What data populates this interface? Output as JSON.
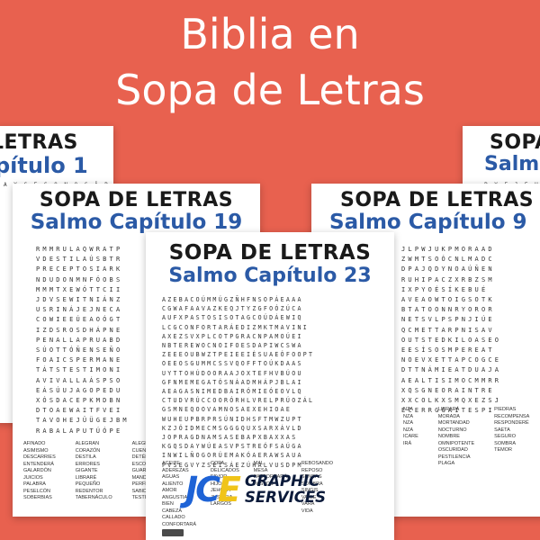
{
  "title": {
    "line1": "Biblia en",
    "line2": "Sopa de Letras"
  },
  "sheets": {
    "back_left": {
      "heading": "LETRAS",
      "subheading": "pítulo 1",
      "strip": "A Y C E G O N O C Â R"
    },
    "back_right": {
      "heading": "SOPA",
      "subheading": "Salm",
      "strip": "P Y E J E H O"
    },
    "mid_left": {
      "heading": "SOPA DE LETRAS",
      "subheading": "Salmo Capítulo 19",
      "grid": "RMMRULAQWRATP\nVDESTILAÚSBTR\nPRECEPTOSIARK\nNDUDONMNFÓOBS\nMMMTXEWÓTTCII\nJDVSEWITNIÁNZ\nUSRINÁJEJNECA\nCOWIEEÚEAOÓGT\nIZDSROSDHÁPNE\nPENALLAPRUABD\nSÚOTTÓÑENSEÑO\nFOAICSPERMANE\nTÁTSTESTIMONI\nAVIVALLAÁSPSO\nEÁSÚUJAGOPEDU\nXÓSDACEPKMDBN\nDTOAEWAITFVEI\nTAVOHEJÜÜGEJBM\nRABALAPUTÚÓPE",
      "words_col1": [
        "AFINADO",
        "ASIMISMO",
        "DESCARRIES",
        "ENTENDERÁ",
        "GALARDÓN",
        "JUICIOS",
        "PALABRA",
        "PESELCÓN",
        "SOBERBIAS"
      ],
      "words_col2": [
        "ALEGRAN",
        "CORAZÓN",
        "DESTILA",
        "ERRORES",
        "GIGANTE",
        "LIBRARÉ",
        "PEQUEÑO",
        "REDENTOR",
        "TABERNÁCULO"
      ],
      "words_col3": [
        "ALEGRASE",
        "CUENTAN",
        "DETÉN",
        "ESCONDA",
        "GUARDARLOS",
        "MANDAMIENTO",
        "PERFECTA",
        "SABIDURÍA",
        "TESTIMONIO"
      ]
    },
    "mid_right": {
      "heading": "SOPA DE LETRAS",
      "subheading": "Salmo Capítulo 9",
      "grid": "JLPWJUKPMORAAD\nZWMTSOÓCNLMADC\nDPAJQDYNOAÚÑEN\nRUHIPACZXRBZSM\nIXPYOÉSÍKEBUÉ\nAVEAOWTOIGSOTK\nBTATOONNRYOROR\nNETSVLPSPNJIÚE\nQCMETTARPNISAV\nOUTSTEDKILOASEO\nEESÍSOSMPEREAT\nNOEVXETTAPCOGCE\nDTTNÁMIEATDUAJA\nAEALTISIMOCMMRR\nXQSGNEORAINTRE\nXXCOLKXSMQXEZSJ\nECERRGGAITESPI",
      "words_col1": [
        "NZA",
        "NZA",
        "NZA",
        "NZA",
        "ICARE",
        "",
        "IRÁ"
      ],
      "words_col2": [
        "LIBRARÁ",
        "MORADA",
        "MORTANDAD",
        "NOCTURNO",
        "NOMBRE",
        "OMNIPOTENTE",
        "OSCURIDAD",
        "PESTILENCIA",
        "PLAGA"
      ],
      "words_col3": [
        "PIEDRAS",
        "RECOMPENSA",
        "RESPONDERÉ",
        "SAETA",
        "SEGURO",
        "SOMBRA",
        "TEMOR"
      ]
    },
    "front": {
      "heading": "SOPA DE LETRAS",
      "subheading": "Salmo Capítulo 23",
      "grid": "AZEBACOÚMMÚGZÑHFNSOPÁEAAA\nCGWAFAAVAZKEQJTYZGFOÓZÚCA\nAUFXPASTOSISOTAGCOÚDÁEWIQ\nLCGCONFORTARÁEDIZMKTMAVINI\nAXEZSVXPLCOTPGRACNPAMOÚEI\nNBTEREWOCNOIFOESDAPIWCSWA\nZEEEOUBWZTPEIEEIÉSUAEÓFOOPT\nOEEOSGUMMCSSVQOFFTOÚKDAAS\nUYTTOHÚDOORAAJOXTEFHVBÚOU\nGFNMEMEGATÓSNÁADMHÁPJBLAI\nAEAGASNIMEDBAIRÓMIEÓEOVLQ\nCTUDVRÚCCOORÓRHLVRELPRÚOZÁL\nGSMNEQOOVAMNOSAEXEHIOAE\nWUHEUPBRPRSÚNIDHSFTMWZUPT\nKZJÓIDMECMSGGGQUXSARXÁVLD\nJOPRAGDNAMSASEBAPXBAXXAS\nKGQSDAYWÚEASVPSTREÓFSAÚGA\nINWILÑOGORÚEMAKÓAERAWSAUA\nPVSEGVYZSEISÁEZÚHALVUSDPM",
      "words_col1": [
        "ACEITE",
        "ADEREZAS",
        "AGUAS",
        "ALIENTO",
        "AMOR",
        "ANGUSTIAS",
        "BIEN",
        "CABEZA",
        "CALLADO",
        "CONFORTARÁ"
      ],
      "words_col2": [
        "COPA",
        "DELICADOS",
        "FAVOR",
        "HIJOS",
        "JEHOVÁ",
        "JUSTICIA",
        "LARGOS"
      ],
      "words_col3": [
        "MAL",
        "MESA",
        "",
        "",
        "",
        "",
        "",
        "PASTOREARÁ",
        "PASTOS"
      ],
      "words_col4": [
        "REBOSANDO",
        "REPOSO",
        "SENDAS",
        "SOMBRA",
        "SINGIS",
        "VALLE",
        "VARA",
        "VIDA"
      ]
    }
  },
  "logo": {
    "mark_j": "J",
    "mark_c": "C",
    "mark_e": "E",
    "line1": "GRAPHIC",
    "line2": "SERVICES"
  }
}
